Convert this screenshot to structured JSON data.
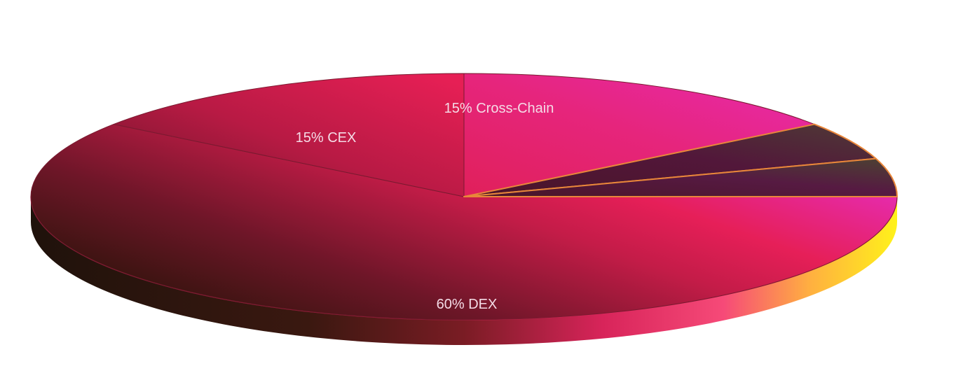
{
  "chart_data": {
    "type": "pie",
    "style": "3d",
    "title": "",
    "slices": [
      {
        "label": "60% DEX",
        "value": 60,
        "color": "#e01f55"
      },
      {
        "label": "15% CEX",
        "value": 15,
        "color": "#c01a48"
      },
      {
        "label": "15% Cross-Chain",
        "value": 15,
        "color": "#e82a9a"
      },
      {
        "label": "",
        "value": 5,
        "color": "#4a1630"
      },
      {
        "label": "",
        "value": 5,
        "color": "#4a1630"
      }
    ],
    "separator_color": "#e8863a",
    "colors": {
      "shadow_dark": "#1a0f0a",
      "edge_hot": "#ff2d6a",
      "edge_yellow": "#fff21a",
      "dark_slice_brown": "#4a3a2e",
      "dark_slice_purple": "#541a3e"
    }
  }
}
